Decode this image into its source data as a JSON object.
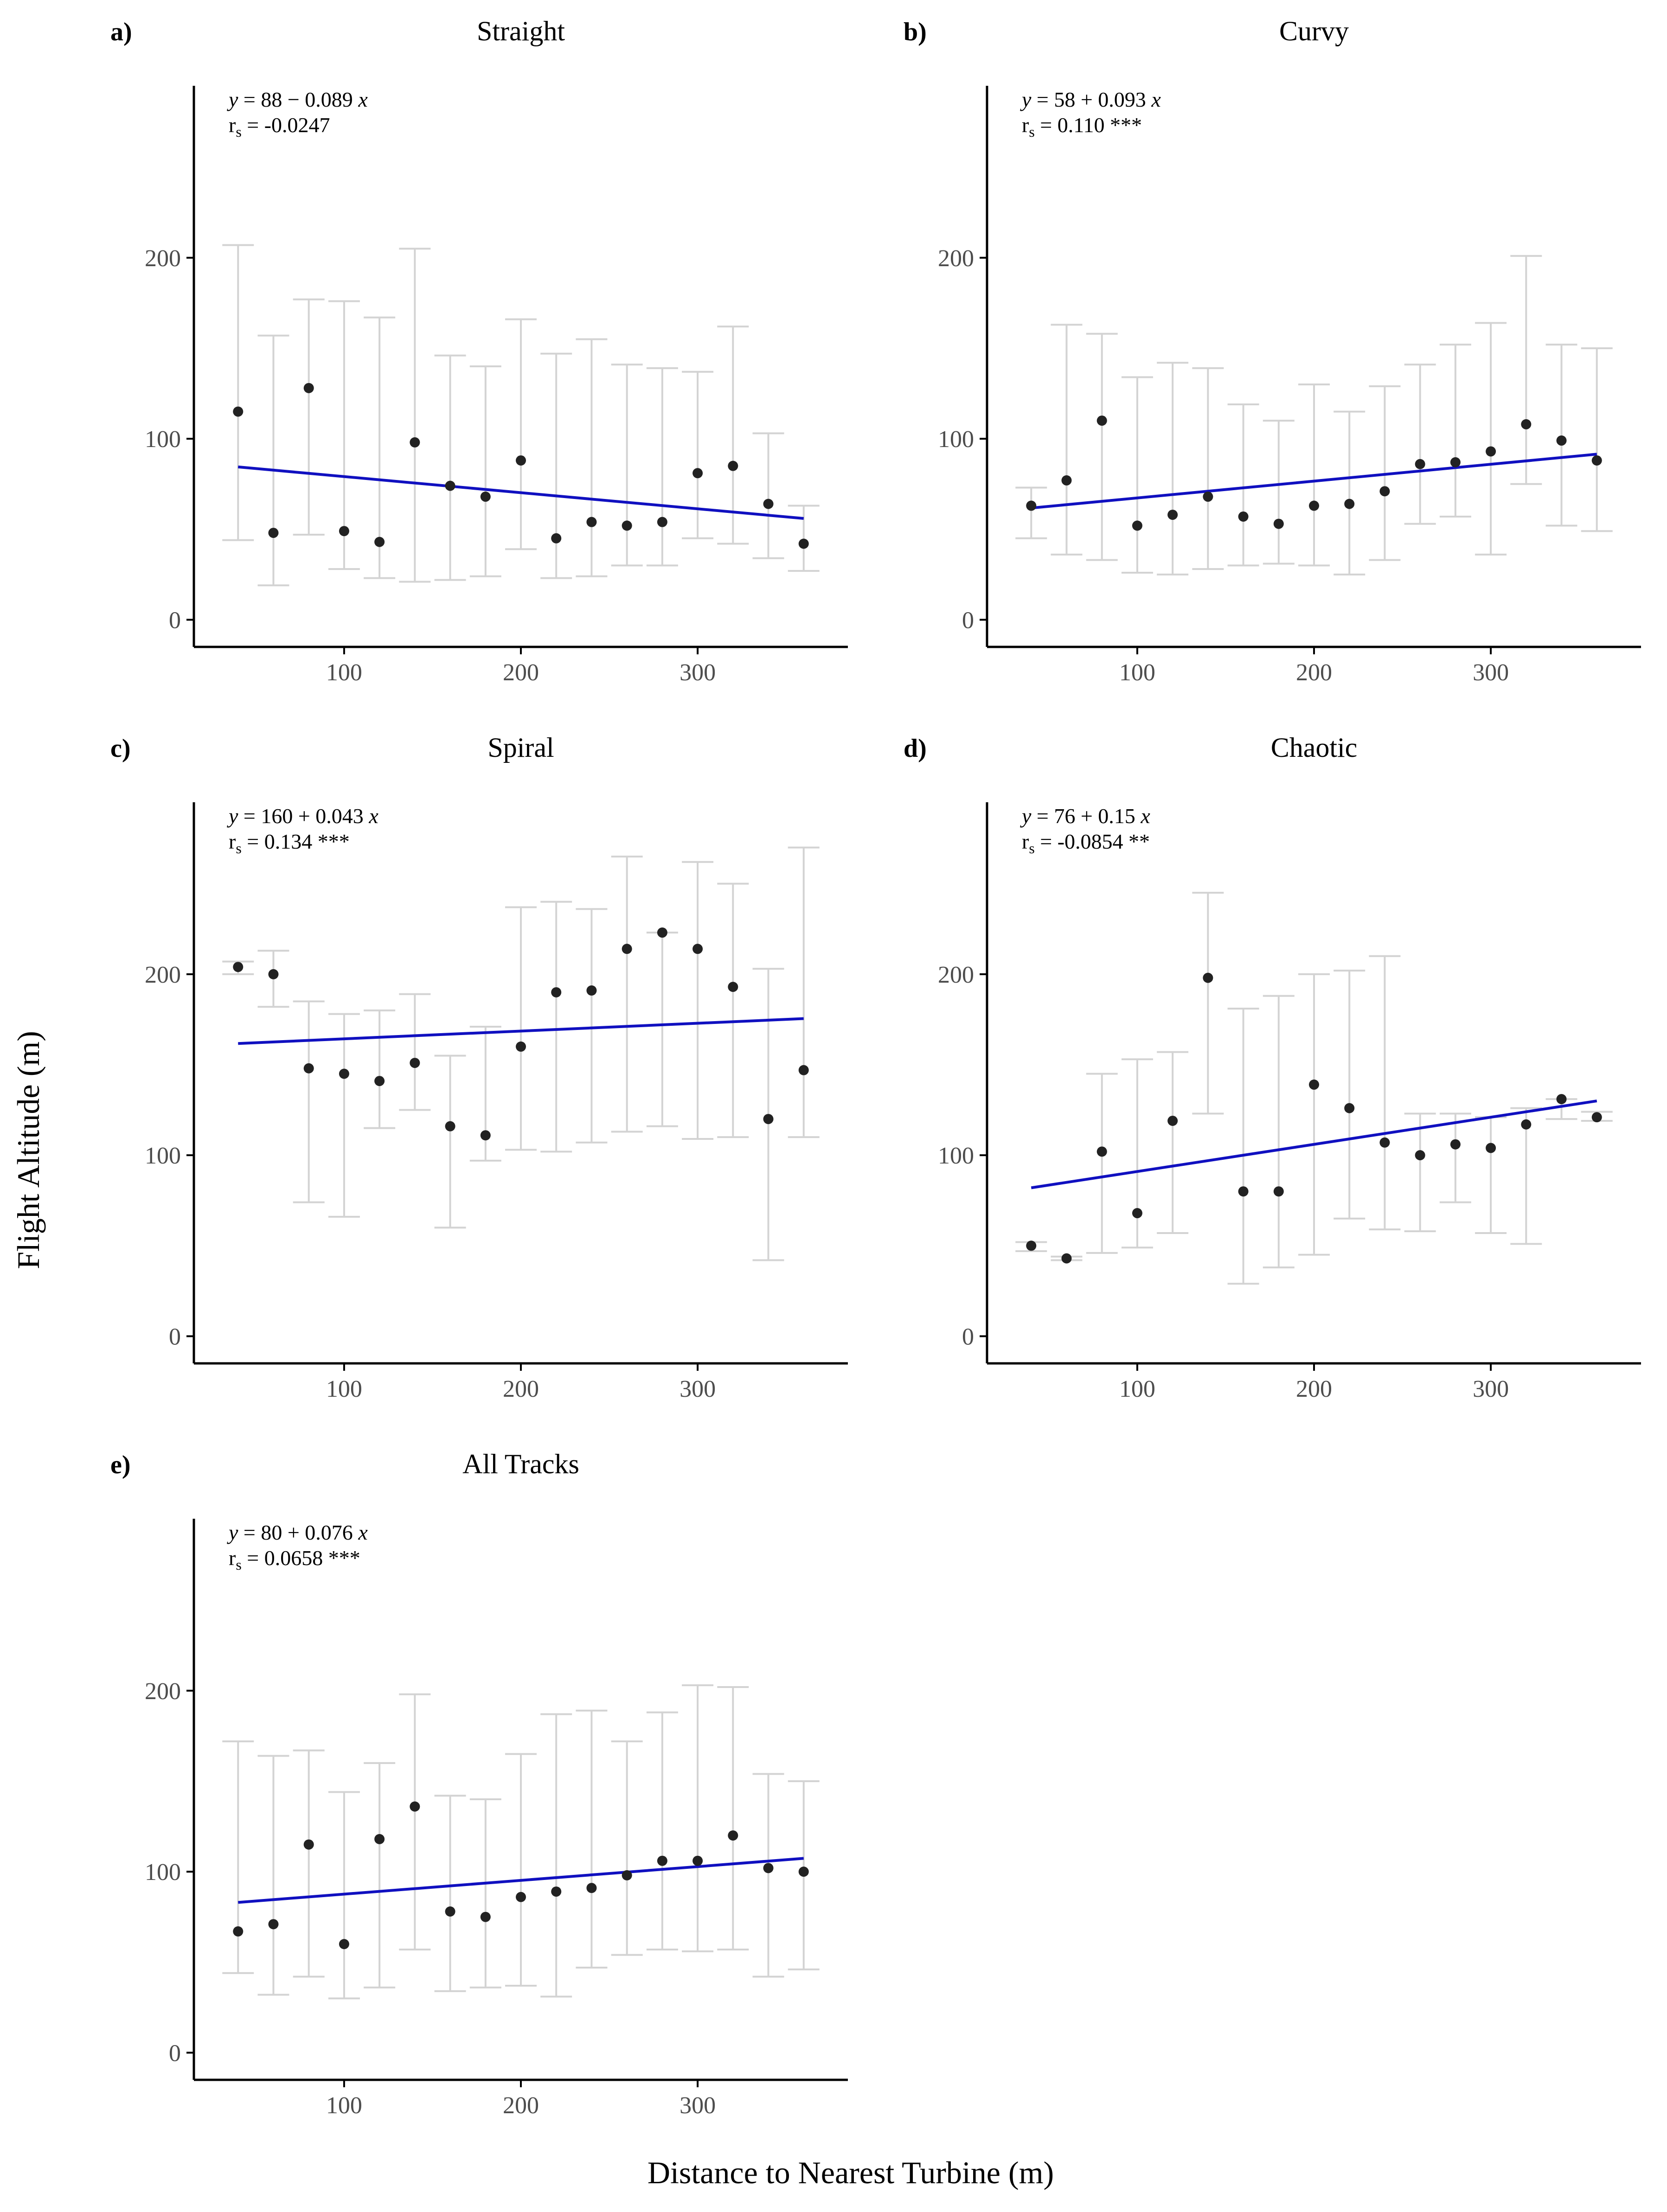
{
  "xlabel": "Distance to Nearest Turbine (m)",
  "ylabel": "Flight Altitude (m)",
  "colors": {
    "fit": "#1010c0",
    "point": "#222222",
    "errorbar": "#d3d3d3",
    "axis": "#000000"
  },
  "chart_data": [
    {
      "type": "scatter",
      "letter": "a)",
      "title": "Straight",
      "equation": {
        "lhs": "y",
        "rhs": " = 88 − 0.089 ",
        "var": "x"
      },
      "rs": {
        "symbol": "r",
        "sub": "s",
        "text": " = -0.0247"
      },
      "xlim": [
        15,
        385
      ],
      "ylim": [
        -15,
        295
      ],
      "xticks": [
        100,
        200,
        300
      ],
      "yticks": [
        0,
        100,
        200
      ],
      "x": [
        40,
        60,
        80,
        100,
        120,
        140,
        160,
        180,
        200,
        220,
        240,
        260,
        280,
        300,
        320,
        340,
        360
      ],
      "y": [
        115,
        48,
        128,
        49,
        43,
        98,
        74,
        68,
        88,
        45,
        54,
        52,
        54,
        81,
        85,
        64,
        42
      ],
      "ymin": [
        44,
        19,
        47,
        28,
        23,
        21,
        22,
        24,
        39,
        23,
        24,
        30,
        30,
        45,
        42,
        34,
        27
      ],
      "ymax": [
        207,
        157,
        177,
        176,
        167,
        205,
        146,
        140,
        166,
        147,
        155,
        141,
        139,
        137,
        162,
        103,
        63
      ],
      "fit": {
        "intercept": 88,
        "slope": -0.089
      }
    },
    {
      "type": "scatter",
      "letter": "b)",
      "title": "Curvy",
      "equation": {
        "lhs": "y",
        "rhs": " = 58 + 0.093 ",
        "var": "x"
      },
      "rs": {
        "symbol": "r",
        "sub": "s",
        "text": " = 0.110 ***"
      },
      "xlim": [
        15,
        385
      ],
      "ylim": [
        -15,
        295
      ],
      "xticks": [
        100,
        200,
        300
      ],
      "yticks": [
        0,
        100,
        200
      ],
      "x": [
        40,
        60,
        80,
        100,
        120,
        140,
        160,
        180,
        200,
        220,
        240,
        260,
        280,
        300,
        320,
        340,
        360
      ],
      "y": [
        63,
        77,
        110,
        52,
        58,
        68,
        57,
        53,
        63,
        64,
        71,
        86,
        87,
        93,
        108,
        99,
        88
      ],
      "ymin": [
        45,
        36,
        33,
        26,
        25,
        28,
        30,
        31,
        30,
        25,
        33,
        53,
        57,
        36,
        75,
        52,
        49
      ],
      "ymax": [
        73,
        163,
        158,
        134,
        142,
        139,
        119,
        110,
        130,
        115,
        129,
        141,
        152,
        164,
        201,
        152,
        150
      ],
      "fit": {
        "intercept": 58,
        "slope": 0.093
      }
    },
    {
      "type": "scatter",
      "letter": "c)",
      "title": "Spiral",
      "equation": {
        "lhs": "y",
        "rhs": " = 160 + 0.043 ",
        "var": "x"
      },
      "rs": {
        "symbol": "r",
        "sub": "s",
        "text": " = 0.134 ***"
      },
      "xlim": [
        15,
        385
      ],
      "ylim": [
        -15,
        295
      ],
      "xticks": [
        100,
        200,
        300
      ],
      "yticks": [
        0,
        100,
        200
      ],
      "x": [
        40,
        60,
        80,
        100,
        120,
        140,
        160,
        180,
        200,
        220,
        240,
        260,
        280,
        300,
        320,
        340,
        360
      ],
      "y": [
        204,
        200,
        148,
        145,
        141,
        151,
        116,
        111,
        160,
        190,
        191,
        214,
        223,
        214,
        193,
        120,
        147
      ],
      "ymin": [
        200,
        182,
        74,
        66,
        115,
        125,
        60,
        97,
        103,
        102,
        107,
        113,
        116,
        109,
        110,
        42,
        110
      ],
      "ymax": [
        207,
        213,
        185,
        178,
        180,
        189,
        155,
        171,
        237,
        240,
        236,
        265,
        223,
        262,
        250,
        203,
        270
      ],
      "fit": {
        "intercept": 160,
        "slope": 0.043
      }
    },
    {
      "type": "scatter",
      "letter": "d)",
      "title": "Chaotic",
      "equation": {
        "lhs": "y",
        "rhs": " = 76 + 0.15 ",
        "var": "x"
      },
      "rs": {
        "symbol": "r",
        "sub": "s",
        "text": " = -0.0854 **"
      },
      "xlim": [
        15,
        385
      ],
      "ylim": [
        -15,
        295
      ],
      "xticks": [
        100,
        200,
        300
      ],
      "yticks": [
        0,
        100,
        200
      ],
      "x": [
        40,
        60,
        80,
        100,
        120,
        140,
        160,
        180,
        200,
        220,
        240,
        260,
        280,
        300,
        320,
        340,
        360
      ],
      "y": [
        50,
        43,
        102,
        68,
        119,
        198,
        80,
        80,
        139,
        126,
        107,
        100,
        106,
        104,
        117,
        131,
        121
      ],
      "ymin": [
        47,
        42,
        46,
        49,
        57,
        123,
        29,
        38,
        45,
        65,
        59,
        58,
        74,
        57,
        51,
        120,
        119
      ],
      "ymax": [
        52,
        44,
        145,
        153,
        157,
        245,
        181,
        188,
        200,
        202,
        210,
        123,
        123,
        121,
        126,
        131,
        124
      ],
      "fit": {
        "intercept": 76,
        "slope": 0.15
      }
    },
    {
      "type": "scatter",
      "letter": "e)",
      "title": "All Tracks",
      "equation": {
        "lhs": "y",
        "rhs": " = 80 + 0.076 ",
        "var": "x"
      },
      "rs": {
        "symbol": "r",
        "sub": "s",
        "text": " = 0.0658 ***"
      },
      "xlim": [
        15,
        385
      ],
      "ylim": [
        -15,
        295
      ],
      "xticks": [
        100,
        200,
        300
      ],
      "yticks": [
        0,
        100,
        200
      ],
      "x": [
        40,
        60,
        80,
        100,
        120,
        140,
        160,
        180,
        200,
        220,
        240,
        260,
        280,
        300,
        320,
        340,
        360
      ],
      "y": [
        67,
        71,
        115,
        60,
        118,
        136,
        78,
        75,
        86,
        89,
        91,
        98,
        106,
        106,
        120,
        102,
        100
      ],
      "ymin": [
        44,
        32,
        42,
        30,
        36,
        57,
        34,
        36,
        37,
        31,
        47,
        54,
        57,
        56,
        57,
        42,
        46
      ],
      "ymax": [
        172,
        164,
        167,
        144,
        160,
        198,
        142,
        140,
        165,
        187,
        189,
        172,
        188,
        203,
        202,
        154,
        150
      ],
      "fit": {
        "intercept": 80,
        "slope": 0.076
      }
    }
  ]
}
